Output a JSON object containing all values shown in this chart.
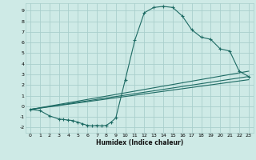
{
  "title": "",
  "xlabel": "Humidex (Indice chaleur)",
  "bg_color": "#ceeae6",
  "grid_color": "#aacfcc",
  "line_color": "#1e6b64",
  "xlim": [
    -0.5,
    23.5
  ],
  "ylim": [
    -2.5,
    9.7
  ],
  "yticks": [
    -2,
    -1,
    0,
    1,
    2,
    3,
    4,
    5,
    6,
    7,
    8,
    9
  ],
  "xticks": [
    0,
    1,
    2,
    3,
    4,
    5,
    6,
    7,
    8,
    9,
    10,
    11,
    12,
    13,
    14,
    15,
    16,
    17,
    18,
    19,
    20,
    21,
    22,
    23
  ],
  "curve1_x": [
    0,
    1,
    2,
    3,
    3.5,
    4,
    4.5,
    5,
    5.5,
    6,
    6.5,
    7,
    7.5,
    8,
    8.5,
    9,
    10,
    11,
    12,
    13,
    14,
    15,
    16,
    17,
    18,
    19,
    20,
    21,
    22,
    23
  ],
  "curve1_y": [
    -0.3,
    -0.4,
    -0.9,
    -1.2,
    -1.25,
    -1.3,
    -1.35,
    -1.5,
    -1.65,
    -1.8,
    -1.85,
    -1.8,
    -1.85,
    -1.8,
    -1.5,
    -1.1,
    2.5,
    6.2,
    8.8,
    9.3,
    9.4,
    9.3,
    8.5,
    7.2,
    6.5,
    6.3,
    5.4,
    5.2,
    3.3,
    2.8
  ],
  "line1_x": [
    0,
    23
  ],
  "line1_y": [
    -0.3,
    2.5
  ],
  "line2_x": [
    0,
    23
  ],
  "line2_y": [
    -0.3,
    3.3
  ],
  "line3_x": [
    0,
    23
  ],
  "line3_y": [
    -0.3,
    2.8
  ]
}
